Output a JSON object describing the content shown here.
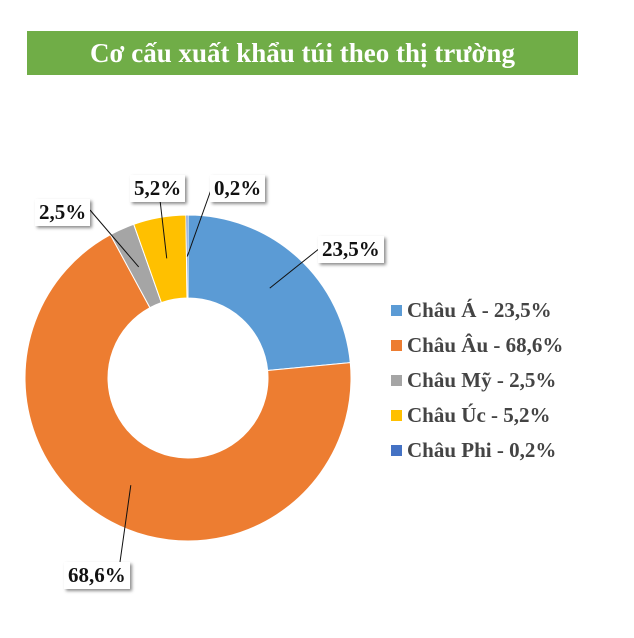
{
  "chart_data": {
    "type": "pie",
    "variant": "donut",
    "title": "Cơ cấu xuất khẩu túi theo thị trường",
    "title_bar_color": "#70AD47",
    "categories": [
      "Châu Á",
      "Châu Âu",
      "Châu Mỹ",
      "Châu Úc",
      "Châu Phi"
    ],
    "values": [
      23.5,
      68.6,
      2.5,
      5.2,
      0.2
    ],
    "data_labels": [
      "23,5%",
      "68,6%",
      "2,5%",
      "5,2%",
      "0,2%"
    ],
    "legend_labels": [
      "Châu Á - 23,5%",
      "Châu Âu - 68,6%",
      "Châu Mỹ - 2,5%",
      "Châu Úc - 5,2%",
      "Châu Phi - 0,2%"
    ],
    "colors": [
      "#5B9BD5",
      "#ED7D31",
      "#A5A5A5",
      "#FFC000",
      "#4472C4"
    ],
    "legend_position": "right"
  }
}
